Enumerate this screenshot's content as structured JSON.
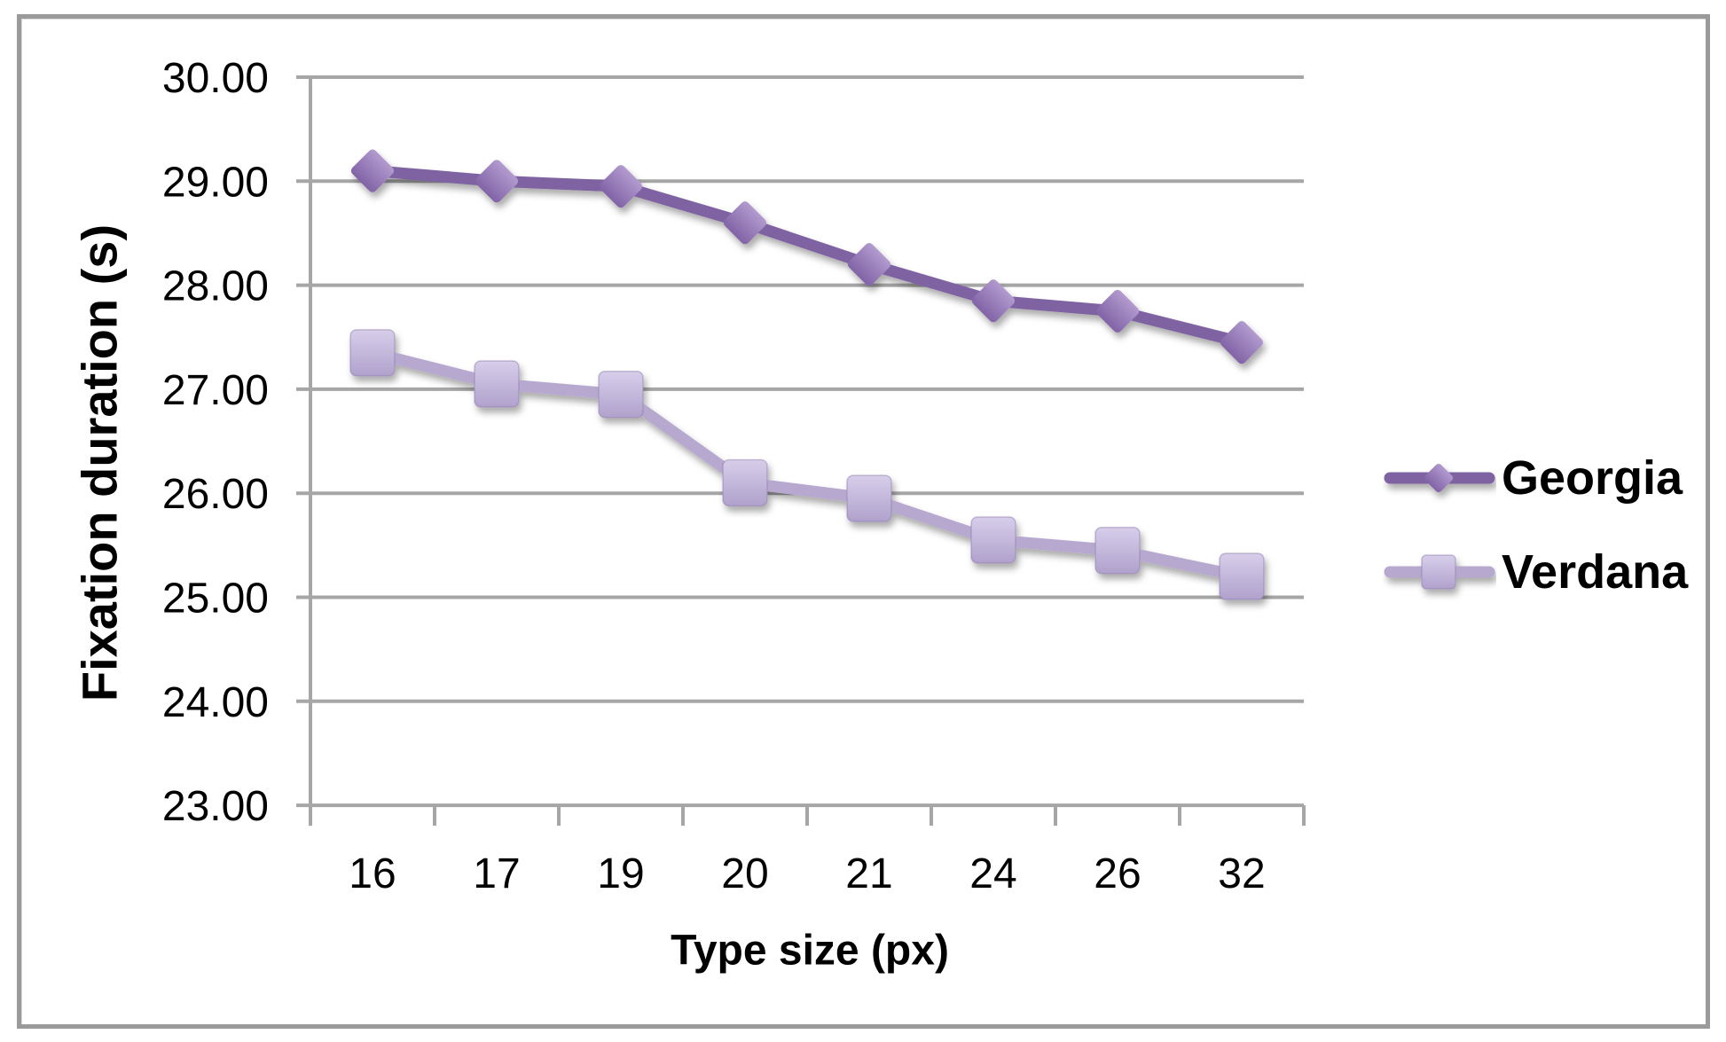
{
  "chart_data": {
    "type": "line",
    "title": "",
    "xlabel": "Type size (px)",
    "ylabel": "Fixation duration (s)",
    "categories": [
      "16",
      "17",
      "19",
      "20",
      "21",
      "24",
      "26",
      "32"
    ],
    "ylim": [
      23,
      30
    ],
    "ytick_step": 1,
    "ytick_labels": [
      "23.00",
      "24.00",
      "25.00",
      "26.00",
      "27.00",
      "28.00",
      "29.00",
      "30.00"
    ],
    "grid": true,
    "legend_position": "right-middle",
    "series": [
      {
        "name": "Georgia",
        "marker": "diamond",
        "values": [
          29.1,
          29.0,
          28.95,
          28.6,
          28.2,
          27.85,
          27.75,
          27.45
        ]
      },
      {
        "name": "Verdana",
        "marker": "square",
        "values": [
          27.35,
          27.05,
          26.95,
          26.1,
          25.95,
          25.55,
          25.45,
          25.2
        ]
      }
    ]
  },
  "colors": {
    "georgia_line": "#7E62A2",
    "georgia_marker_light": "#B29BCF",
    "georgia_marker_dark": "#8163A6",
    "verdana_line": "#B7A8CF",
    "verdana_marker_light": "#D7CEEA",
    "verdana_marker_dark": "#B0A1CC",
    "gridline": "#A6A6A6",
    "axis": "#A6A6A6",
    "frame": "#9A9A9A",
    "text": "#000000"
  }
}
